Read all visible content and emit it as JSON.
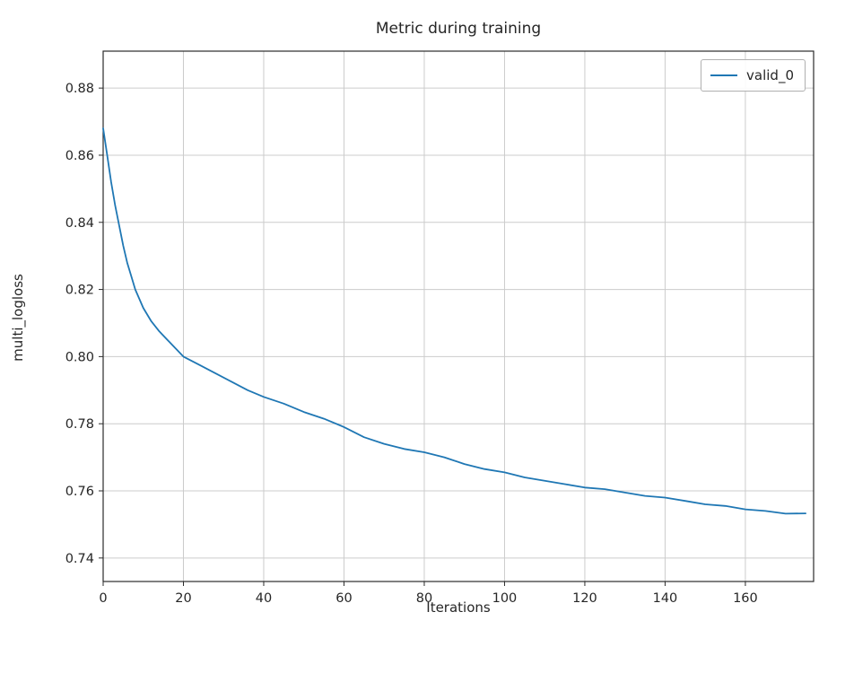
{
  "figure": {
    "title": "Metric during training",
    "xlabel": "Iterations",
    "ylabel": "multi_logloss"
  },
  "chart_data": {
    "type": "line",
    "title": "Metric during training",
    "xlabel": "Iterations",
    "ylabel": "multi_logloss",
    "xlim": [
      0,
      177
    ],
    "ylim": [
      0.733,
      0.891
    ],
    "xticks": [
      0,
      20,
      40,
      60,
      80,
      100,
      120,
      140,
      160
    ],
    "xticklabels": [
      "0",
      "20",
      "40",
      "60",
      "80",
      "100",
      "120",
      "140",
      "160"
    ],
    "yticks": [
      0.74,
      0.76,
      0.78,
      0.8,
      0.82,
      0.84,
      0.86,
      0.88
    ],
    "yticklabels": [
      "0.74",
      "0.76",
      "0.78",
      "0.80",
      "0.82",
      "0.84",
      "0.86",
      "0.88"
    ],
    "grid": true,
    "legend_position": "upper right",
    "colors": {
      "grid": "#cccccc",
      "axis": "#2b2b2b",
      "text": "#262626"
    },
    "series": [
      {
        "name": "valid_0",
        "color": "#1f77b4",
        "x": [
          0,
          1,
          2,
          3,
          4,
          5,
          6,
          7,
          8,
          10,
          12,
          14,
          16,
          18,
          20,
          24,
          28,
          32,
          36,
          40,
          45,
          50,
          55,
          60,
          65,
          70,
          75,
          80,
          85,
          90,
          95,
          100,
          105,
          110,
          115,
          120,
          125,
          130,
          135,
          140,
          145,
          150,
          155,
          160,
          165,
          170,
          175
        ],
        "y": [
          0.868,
          0.86,
          0.852,
          0.845,
          0.839,
          0.833,
          0.828,
          0.824,
          0.82,
          0.8145,
          0.8105,
          0.8075,
          0.805,
          0.8025,
          0.8,
          0.7975,
          0.795,
          0.7925,
          0.79,
          0.788,
          0.786,
          0.7835,
          0.7815,
          0.779,
          0.776,
          0.774,
          0.7725,
          0.7715,
          0.77,
          0.768,
          0.7665,
          0.7655,
          0.764,
          0.763,
          0.762,
          0.761,
          0.7605,
          0.7595,
          0.7585,
          0.758,
          0.757,
          0.756,
          0.7555,
          0.7545,
          0.754,
          0.7532,
          0.7533
        ]
      }
    ]
  }
}
